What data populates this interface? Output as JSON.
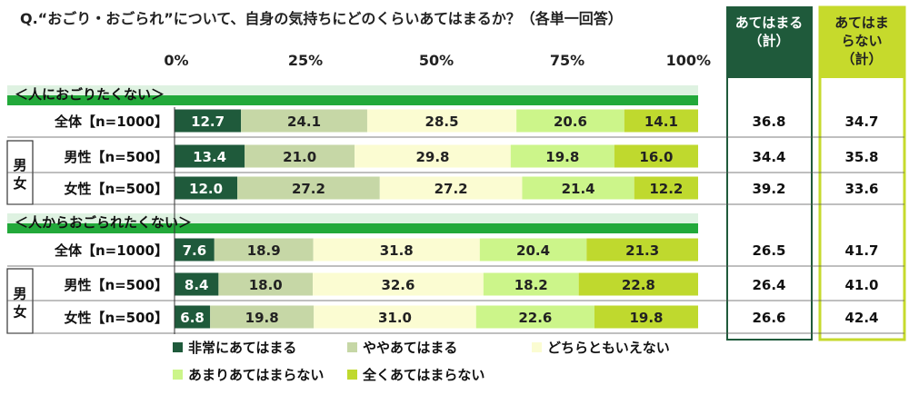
{
  "chart_data": {
    "type": "bar",
    "title": "Q.“おごり・おごられ”について、自身の気持ちにどのくらいあてはまるか？（各単一回答）",
    "x_ticks": [
      "0%",
      "25%",
      "50%",
      "75%",
      "100%"
    ],
    "xlim": [
      0,
      100
    ],
    "legend": [
      "非常にあてはまる",
      "ややあてはまる",
      "どちらともいえない",
      "あまりあてはまらない",
      "全くあてはまらない"
    ],
    "colors": [
      "#1f5a3b",
      "#c6d7a6",
      "#fbfcd2",
      "#ccf58a",
      "#bfd92e"
    ],
    "summary_headers": [
      "あてはまる（計）",
      "あてはまらない（計）"
    ],
    "summary_colors": [
      "#1f5a3b",
      "#c6da2c"
    ],
    "gender_label": "男女",
    "sections": [
      {
        "title": "＜人におごりたくない＞",
        "rows": [
          {
            "label": "全体【n=1000】",
            "values": [
              12.7,
              24.1,
              28.5,
              20.6,
              14.1
            ],
            "applies": "36.8",
            "not_applies": "34.7"
          },
          {
            "label": "男性【n=500】",
            "values": [
              13.4,
              21.0,
              29.8,
              19.8,
              16.0
            ],
            "applies": "34.4",
            "not_applies": "35.8"
          },
          {
            "label": "女性【n=500】",
            "values": [
              12.0,
              27.2,
              27.2,
              21.4,
              12.2
            ],
            "applies": "39.2",
            "not_applies": "33.6"
          }
        ]
      },
      {
        "title": "＜人からおごられたくない＞",
        "rows": [
          {
            "label": "全体【n=1000】",
            "values": [
              7.6,
              18.9,
              31.8,
              20.4,
              21.3
            ],
            "applies": "26.5",
            "not_applies": "41.7"
          },
          {
            "label": "男性【n=500】",
            "values": [
              8.4,
              18.0,
              32.6,
              18.2,
              22.8
            ],
            "applies": "26.4",
            "not_applies": "41.0"
          },
          {
            "label": "女性【n=500】",
            "values": [
              6.8,
              19.8,
              31.0,
              22.6,
              19.8
            ],
            "applies": "26.6",
            "not_applies": "42.4"
          }
        ]
      }
    ]
  }
}
